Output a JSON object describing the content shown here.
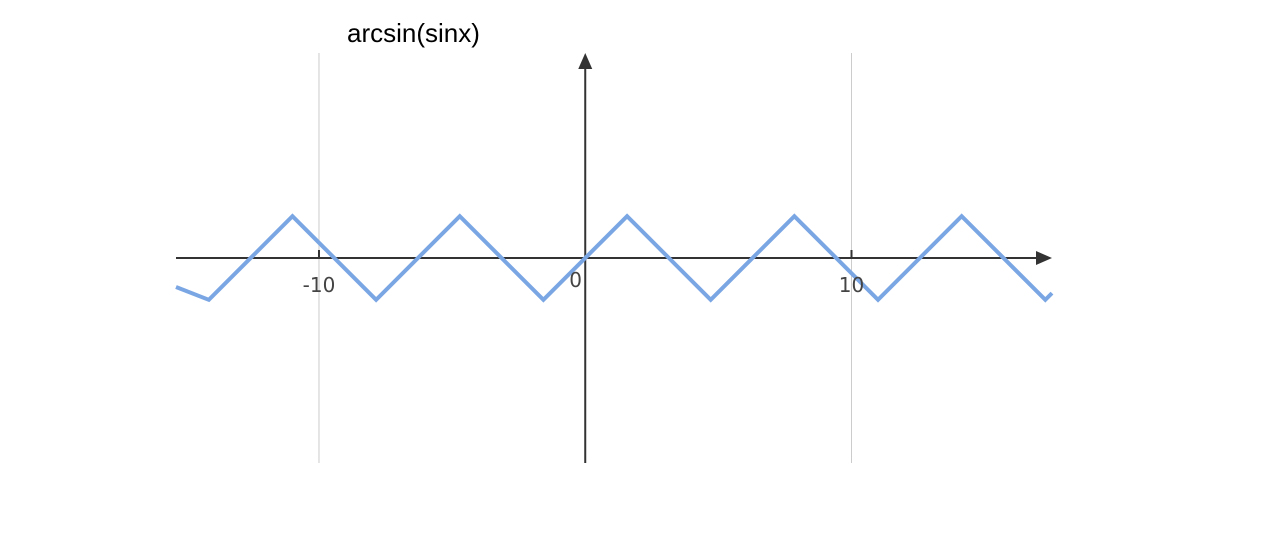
{
  "chart_data": {
    "type": "line",
    "title": "arcsin(sinx)",
    "xlabel": "",
    "ylabel": "",
    "xlim": [
      -15.37,
      17.53
    ],
    "ylim": [
      -7.7,
      7.7
    ],
    "grid": "vertical",
    "x_ticks": [
      -10,
      0,
      10
    ],
    "x_tick_labels": [
      "-10",
      "0",
      "10"
    ],
    "series": [
      {
        "color": "#7aa6e4",
        "x": [
          -15.37,
          -14.137,
          -10.996,
          -7.854,
          -4.712,
          -1.571,
          1.571,
          4.712,
          7.854,
          10.996,
          14.137,
          17.279,
          17.53
        ],
        "y": [
          -1.089,
          -1.571,
          1.571,
          -1.571,
          1.571,
          -1.571,
          1.571,
          -1.571,
          1.571,
          -1.571,
          1.571,
          -1.571,
          -1.32
        ]
      }
    ]
  },
  "colors": {
    "axis": "#333333",
    "grid": "#cccccc",
    "line": "#7aa6e4"
  }
}
